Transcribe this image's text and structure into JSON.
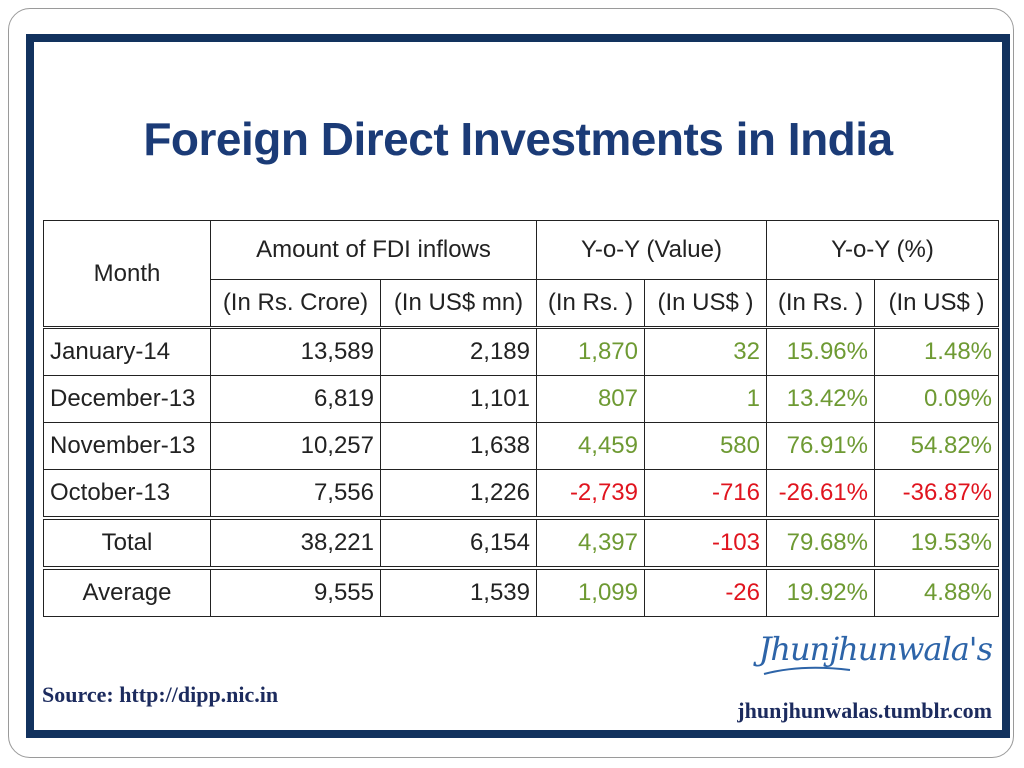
{
  "title": "Foreign Direct Investments in India",
  "table": {
    "header": {
      "month": "Month",
      "group_fdi": "Amount of FDI inflows",
      "group_yoy_value": "Y-o-Y (Value)",
      "group_yoy_pct": "Y-o-Y (%)",
      "sub": [
        "(In Rs. Crore)",
        "(In US$ mn)",
        "(In Rs. )",
        "(In US$ )",
        "(In Rs. )",
        "(In US$ )"
      ]
    },
    "rows": [
      {
        "month": "January-14",
        "fdi_rs": "13,589",
        "fdi_usd": "2,189",
        "yoy_rs": "1,870",
        "yoy_usd": "32",
        "pct_rs": "15.96%",
        "pct_usd": "1.48%"
      },
      {
        "month": "December-13",
        "fdi_rs": "6,819",
        "fdi_usd": "1,101",
        "yoy_rs": "807",
        "yoy_usd": "1",
        "pct_rs": "13.42%",
        "pct_usd": "0.09%"
      },
      {
        "month": "November-13",
        "fdi_rs": "10,257",
        "fdi_usd": "1,638",
        "yoy_rs": "4,459",
        "yoy_usd": "580",
        "pct_rs": "76.91%",
        "pct_usd": "54.82%"
      },
      {
        "month": "October-13",
        "fdi_rs": "7,556",
        "fdi_usd": "1,226",
        "yoy_rs": "-2,739",
        "yoy_usd": "-716",
        "pct_rs": "-26.61%",
        "pct_usd": "-36.87%"
      }
    ],
    "total": {
      "month": "Total",
      "fdi_rs": "38,221",
      "fdi_usd": "6,154",
      "yoy_rs": "4,397",
      "yoy_usd": "-103",
      "pct_rs": "79.68%",
      "pct_usd": "19.53%"
    },
    "average": {
      "month": "Average",
      "fdi_rs": "9,555",
      "fdi_usd": "1,539",
      "yoy_rs": "1,099",
      "yoy_usd": "-26",
      "pct_rs": "19.92%",
      "pct_usd": "4.88%"
    }
  },
  "source": "Source: http://dipp.nic.in",
  "logo": {
    "script": "Jhunjhunwala's",
    "url": "jhunjhunwalas.tumblr.com"
  },
  "colors": {
    "frame": "#12325e",
    "title": "#1b3b77",
    "positive": "#6e9a33",
    "negative": "#e0141e"
  }
}
